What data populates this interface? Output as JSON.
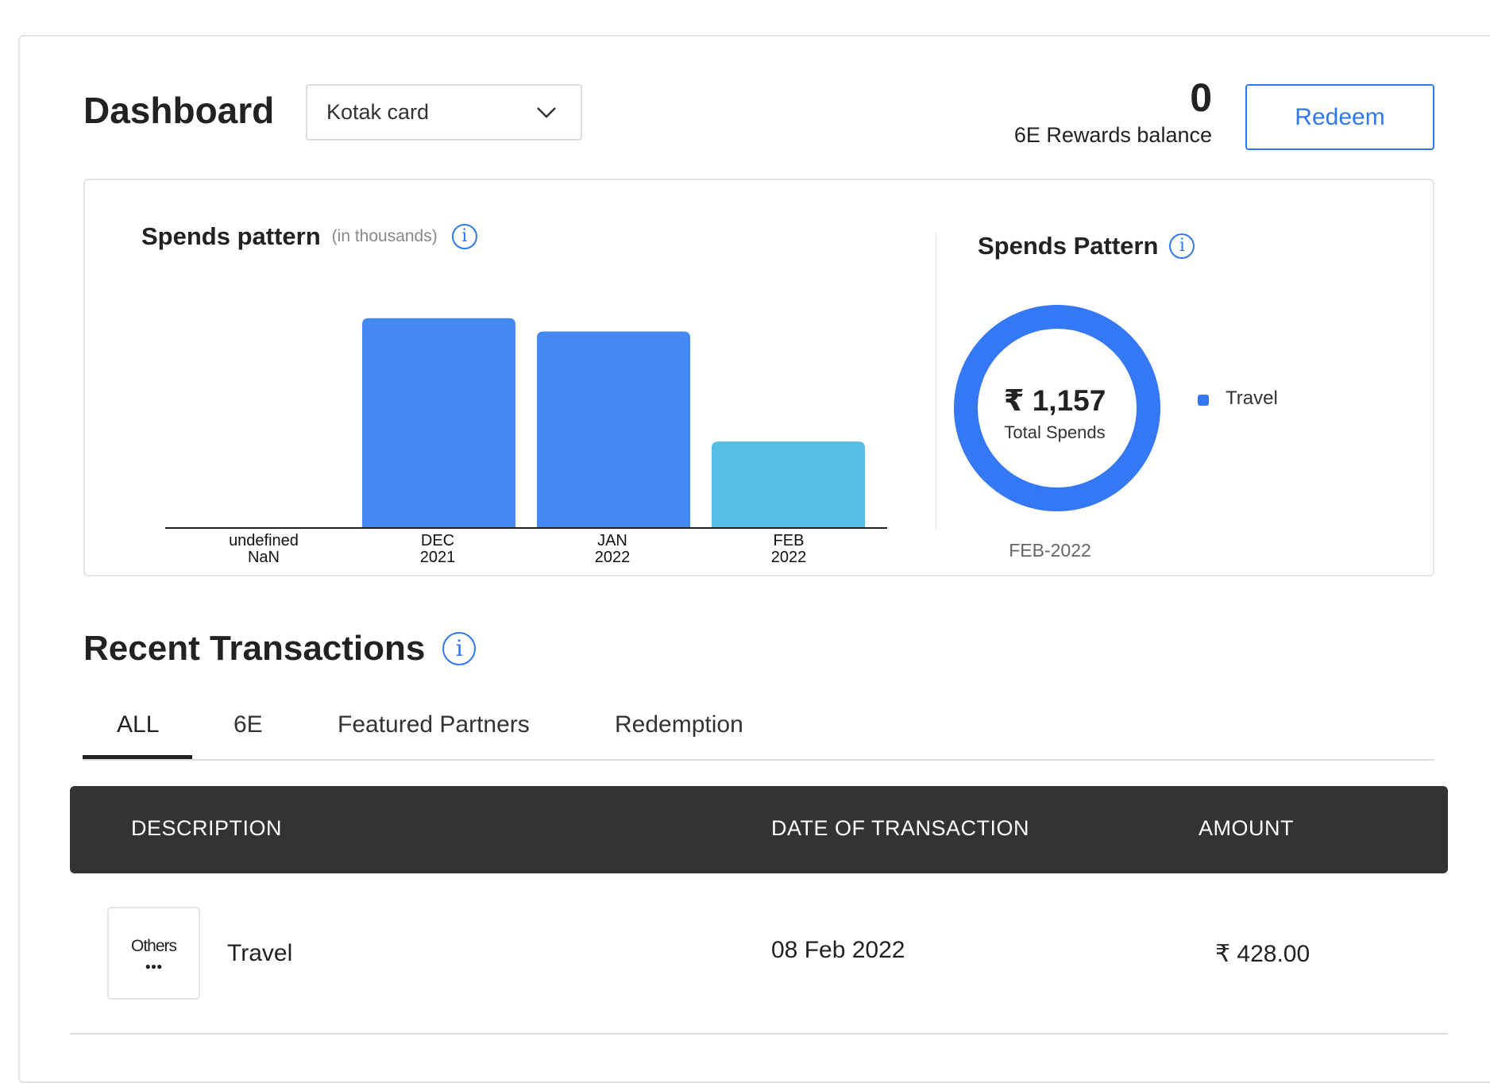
{
  "header": {
    "title": "Dashboard",
    "card_select": "Kotak card",
    "rewards_balance": "0",
    "rewards_label": "6E Rewards balance",
    "redeem_label": "Redeem"
  },
  "spends_chart": {
    "title": "Spends pattern",
    "subtitle": "(in thousands)",
    "info_icon": "info-icon"
  },
  "chart_data": {
    "type": "bar",
    "categories": [
      [
        "undefined",
        "NaN"
      ],
      [
        "DEC",
        "2021"
      ],
      [
        "JAN",
        "2022"
      ],
      [
        "FEB",
        "2022"
      ]
    ],
    "values": [
      0,
      2.83,
      2.65,
      1.16
    ],
    "colors": [
      "#4589F2",
      "#4589F2",
      "#4589F2",
      "#56BDE4"
    ],
    "title": "Spends pattern",
    "subtitle": "(in thousands)",
    "xlabel": "",
    "ylabel": "",
    "grid": false
  },
  "donut": {
    "title": "Spends Pattern",
    "total": "₹ 1,157",
    "total_label": "Total Spends",
    "period": "FEB-2022",
    "legend": [
      {
        "label": "Travel",
        "color": "#3478F6"
      }
    ]
  },
  "transactions": {
    "title": "Recent Transactions",
    "tabs": [
      {
        "label": "ALL",
        "active": true
      },
      {
        "label": "6E"
      },
      {
        "label": "Featured Partners"
      },
      {
        "label": "Redemption"
      }
    ],
    "columns": [
      "DESCRIPTION",
      "DATE OF TRANSACTION",
      "AMOUNT"
    ],
    "rows": [
      {
        "logo": "Others",
        "description": "Travel",
        "date": "08 Feb 2022",
        "amount": "₹ 428.00"
      }
    ]
  }
}
